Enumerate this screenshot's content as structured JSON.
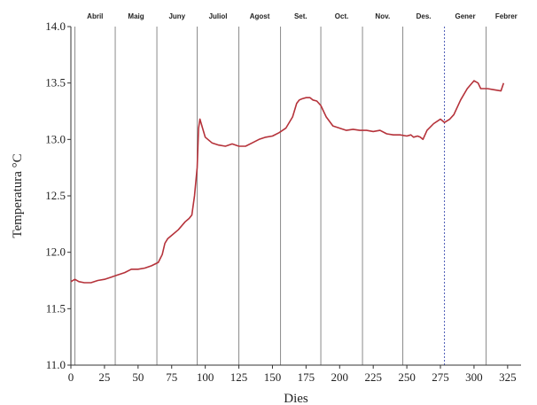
{
  "chart_data": {
    "type": "line",
    "title": "",
    "xlabel": "Dies",
    "ylabel": "Temperatura °C",
    "xlim": [
      0,
      335
    ],
    "ylim": [
      11.0,
      14.0
    ],
    "xticks": [
      0,
      25,
      50,
      75,
      100,
      125,
      150,
      175,
      200,
      225,
      250,
      275,
      300,
      325
    ],
    "yticks": [
      11.0,
      11.5,
      12.0,
      12.5,
      13.0,
      13.5,
      14.0
    ],
    "xtick_labels": [
      "0",
      "25",
      "50",
      "75",
      "100",
      "125",
      "150",
      "175",
      "200",
      "225",
      "250",
      "275",
      "300",
      "325"
    ],
    "ytick_labels": [
      "11.0",
      "11.5",
      "12.0",
      "12.5",
      "13.0",
      "13.5",
      "14.0"
    ],
    "grid": false,
    "line_color": "#b5323a",
    "month_line_color": "#8a8a8a",
    "highlight_line_color": "#4a5bb5",
    "months": [
      {
        "label": "Abril",
        "boundary": 3
      },
      {
        "label": "Maig",
        "boundary": 33
      },
      {
        "label": "Juny",
        "boundary": 64
      },
      {
        "label": "Juliol",
        "boundary": 94
      },
      {
        "label": "Agost",
        "boundary": 125
      },
      {
        "label": "Set.",
        "boundary": 156
      },
      {
        "label": "Oct.",
        "boundary": 186
      },
      {
        "label": "Nov.",
        "boundary": 217
      },
      {
        "label": "Des.",
        "boundary": 247
      },
      {
        "label": "Gener",
        "boundary": 278,
        "highlight": true
      },
      {
        "label": "Febrer",
        "boundary": 309
      }
    ],
    "series": [
      {
        "x": [
          0,
          3,
          6,
          10,
          15,
          20,
          25,
          30,
          35,
          40,
          45,
          50,
          55,
          60,
          65,
          68,
          70,
          72,
          75,
          80,
          85,
          88,
          90,
          92,
          94,
          95,
          96,
          98,
          100,
          105,
          110,
          115,
          120,
          125,
          130,
          135,
          140,
          145,
          150,
          155,
          160,
          165,
          168,
          170,
          172,
          175,
          178,
          180,
          183,
          186,
          190,
          195,
          200,
          205,
          210,
          215,
          220,
          225,
          230,
          235,
          240,
          245,
          250,
          253,
          255,
          258,
          260,
          262,
          265,
          270,
          275,
          278,
          282,
          285,
          290,
          295,
          300,
          303,
          305,
          310,
          315,
          320,
          322
        ],
        "y": [
          11.74,
          11.76,
          11.74,
          11.73,
          11.73,
          11.75,
          11.76,
          11.78,
          11.8,
          11.82,
          11.85,
          11.85,
          11.86,
          11.88,
          11.91,
          11.98,
          12.08,
          12.12,
          12.15,
          12.2,
          12.27,
          12.3,
          12.33,
          12.5,
          12.75,
          13.1,
          13.18,
          13.1,
          13.02,
          12.97,
          12.95,
          12.94,
          12.96,
          12.94,
          12.94,
          12.97,
          13.0,
          13.02,
          13.03,
          13.06,
          13.1,
          13.2,
          13.32,
          13.35,
          13.36,
          13.37,
          13.37,
          13.35,
          13.34,
          13.3,
          13.2,
          13.12,
          13.1,
          13.08,
          13.09,
          13.08,
          13.08,
          13.07,
          13.08,
          13.05,
          13.04,
          13.04,
          13.03,
          13.04,
          13.02,
          13.03,
          13.02,
          13.0,
          13.08,
          13.14,
          13.18,
          13.15,
          13.18,
          13.22,
          13.35,
          13.45,
          13.52,
          13.5,
          13.45,
          13.45,
          13.44,
          13.43,
          13.5
        ]
      }
    ]
  }
}
